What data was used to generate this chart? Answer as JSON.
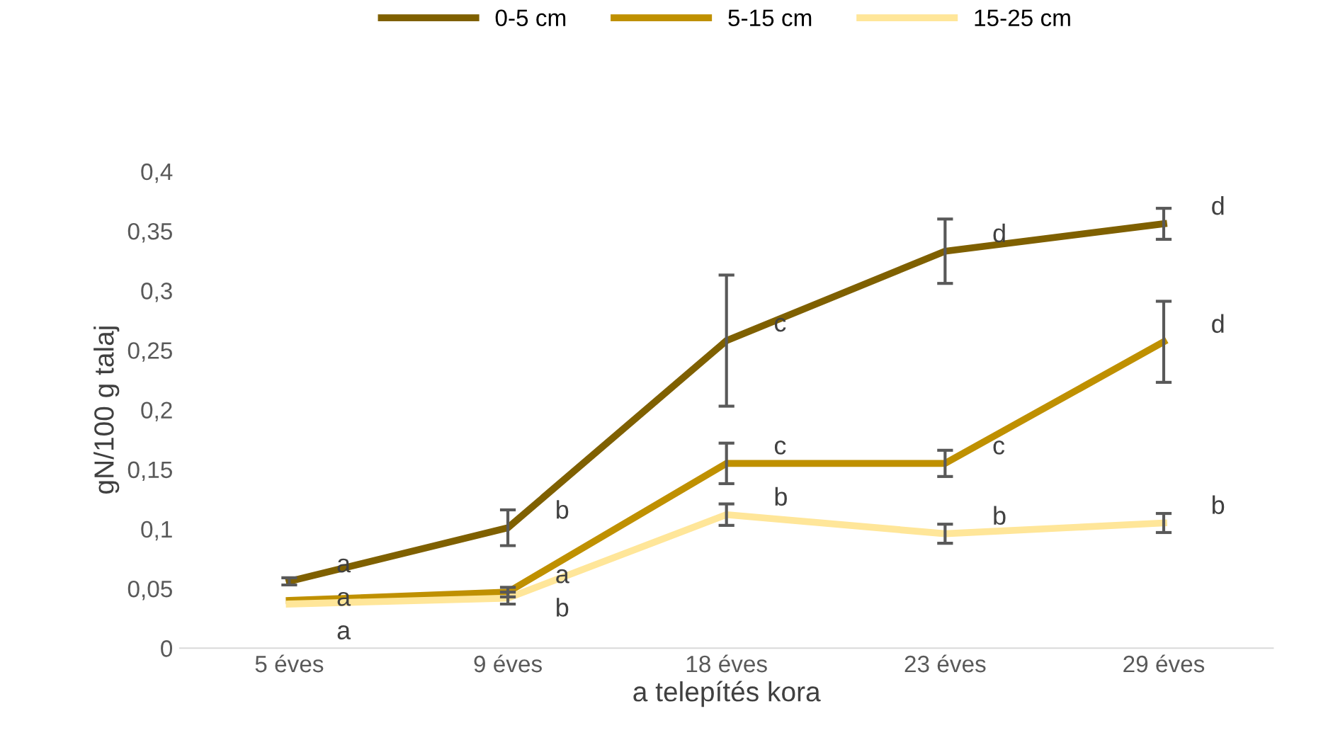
{
  "chart_data": {
    "type": "line",
    "xlabel": "a telepítés kora",
    "ylabel": "gN/100 g talaj",
    "categories": [
      "5 éves",
      "9 éves",
      "18 éves",
      "23 éves",
      "29 éves"
    ],
    "series": [
      {
        "name": "0-5 cm",
        "color": "#7f6000",
        "values": [
          0.056,
          0.101,
          0.258,
          0.333,
          0.356
        ],
        "errors": [
          0.003,
          0.015,
          0.055,
          0.027,
          0.013
        ]
      },
      {
        "name": "5-15 cm",
        "color": "#bf9000",
        "values": [
          0.04,
          0.047,
          0.155,
          0.155,
          0.257
        ],
        "errors": [
          null,
          0.004,
          0.017,
          0.011,
          0.034
        ]
      },
      {
        "name": "15-25 cm",
        "color": "#ffe699",
        "values": [
          0.037,
          0.042,
          0.112,
          0.096,
          0.105
        ],
        "errors": [
          null,
          0.005,
          0.009,
          0.008,
          0.008
        ]
      }
    ],
    "annotations": [
      {
        "text": "a",
        "x": "5 éves",
        "y": 0.056
      },
      {
        "text": "a",
        "x": "5 éves",
        "y": 0.04
      },
      {
        "text": "a",
        "x": "5 éves",
        "y": 0.037
      },
      {
        "text": "b",
        "x": "9 éves",
        "y": 0.101
      },
      {
        "text": "a",
        "x": "9 éves",
        "y": 0.047
      },
      {
        "text": "b",
        "x": "9 éves",
        "y": 0.042
      },
      {
        "text": "c",
        "x": "18 éves",
        "y": 0.258
      },
      {
        "text": "c",
        "x": "18 éves",
        "y": 0.155
      },
      {
        "text": "b",
        "x": "18 éves",
        "y": 0.112
      },
      {
        "text": "d",
        "x": "23 éves",
        "y": 0.333
      },
      {
        "text": "c",
        "x": "23 éves",
        "y": 0.155
      },
      {
        "text": "b",
        "x": "23 éves",
        "y": 0.096
      },
      {
        "text": "d",
        "x": "29 éves",
        "y": 0.356
      },
      {
        "text": "d",
        "x": "29 éves",
        "y": 0.257
      },
      {
        "text": "b",
        "x": "29 éves",
        "y": 0.105
      }
    ],
    "ylim": [
      0,
      0.4
    ],
    "yticks": [
      0,
      {
        "value": 0.05,
        "label": "0,05"
      },
      {
        "value": 0.1,
        "label": "0,1"
      },
      {
        "value": 0.15,
        "label": "0,15"
      },
      {
        "value": 0.2,
        "label": "0,2"
      },
      {
        "value": 0.25,
        "label": "0,25"
      },
      {
        "value": 0.3,
        "label": "0,3"
      },
      {
        "value": 0.35,
        "label": "0,35"
      },
      {
        "value": 0.4,
        "label": "0,4"
      }
    ],
    "legend": "top",
    "grid": false,
    "marker": "none",
    "line_style": "solid"
  }
}
